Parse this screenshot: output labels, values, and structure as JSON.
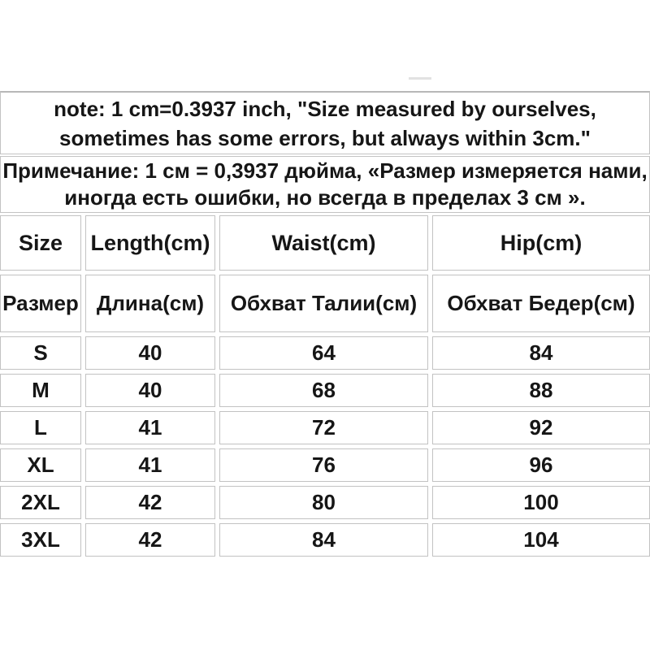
{
  "chart_data": {
    "type": "table",
    "title": "Garment size chart with bilingual (English / Russian) measurement note",
    "notes": {
      "en": [
        "note: 1 cm=0.3937 inch, \"Size measured by ourselves,",
        "sometimes has some errors, but always within 3cm.\""
      ],
      "ru": [
        "Примечание: 1 см = 0,3937 дюйма, «Размер измеряется нами,",
        "иногда есть ошибки, но всегда в пределах 3 см »."
      ]
    },
    "headers_en": [
      "Size",
      "Length(cm)",
      "Waist(cm)",
      "Hip(cm)"
    ],
    "headers_ru": [
      "Размер",
      "Длина(см)",
      "Обхват Талии(см)",
      "Обхват Бедер(см)"
    ],
    "rows": [
      {
        "size": "S",
        "length": "40",
        "waist": "64",
        "hip": "84"
      },
      {
        "size": "M",
        "length": "40",
        "waist": "68",
        "hip": "88"
      },
      {
        "size": "L",
        "length": "41",
        "waist": "72",
        "hip": "92"
      },
      {
        "size": "XL",
        "length": "41",
        "waist": "76",
        "hip": "96"
      },
      {
        "size": "2XL",
        "length": "42",
        "waist": "80",
        "hip": "100"
      },
      {
        "size": "3XL",
        "length": "42",
        "waist": "84",
        "hip": "104"
      }
    ]
  },
  "colors": {
    "background": "#ffffff",
    "border": "#c2c2c2",
    "text": "#161616"
  }
}
